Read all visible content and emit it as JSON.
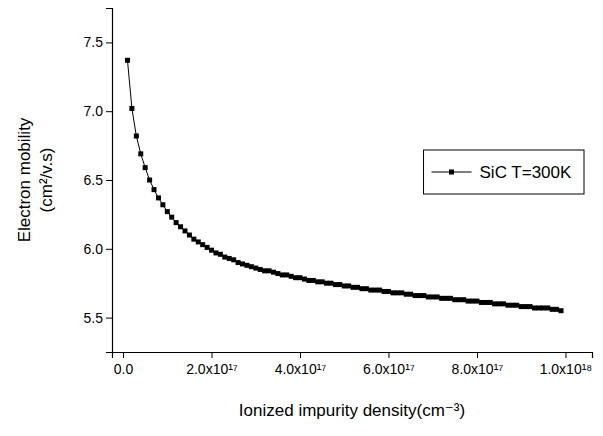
{
  "chart_data": {
    "type": "line",
    "x_label": "Ionized impurity density(cm⁻³)",
    "y_label": [
      "Electron mobility",
      "(cm²/v.s)"
    ],
    "xlim": [
      -2.5e+16,
      1.06e+18
    ],
    "ylim": [
      5.25,
      7.75
    ],
    "xticks": [
      {
        "value": 0,
        "label": "0.0"
      },
      {
        "value": 2e+17,
        "label": "2.0x10¹⁷"
      },
      {
        "value": 4e+17,
        "label": "4.0x10¹⁷"
      },
      {
        "value": 6e+17,
        "label": "6.0x10¹⁷"
      },
      {
        "value": 8e+17,
        "label": "8.0x10¹⁷"
      },
      {
        "value": 1e+18,
        "label": "1.0x10¹⁸"
      }
    ],
    "yticks": [
      5.5,
      {
        "value": 6,
        "label": "6.0"
      },
      6.5,
      {
        "value": 7,
        "label": "7.0"
      },
      7.5
    ],
    "legend": "right",
    "x": [
      1e+16,
      2e+16,
      3e+16,
      4e+16,
      5e+16,
      6e+16,
      7e+16,
      8e+16,
      9e+16,
      1e+17,
      1.1e+17,
      1.2e+17,
      1.3e+17,
      1.4e+17,
      1.5e+17,
      1.6e+17,
      1.7e+17,
      1.8e+17,
      1.9e+17,
      2e+17,
      2.1e+17,
      2.2e+17,
      2.3e+17,
      2.4e+17,
      2.5e+17,
      2.6e+17,
      2.7e+17,
      2.8e+17,
      2.9e+17,
      3e+17,
      3.1e+17,
      3.2e+17,
      3.3e+17,
      3.4e+17,
      3.5e+17,
      3.6e+17,
      3.7e+17,
      3.8e+17,
      3.9e+17,
      4e+17,
      4.1e+17,
      4.2e+17,
      4.3e+17,
      4.4e+17,
      4.5e+17,
      4.6e+17,
      4.7e+17,
      4.8e+17,
      4.9e+17,
      5e+17,
      5.1e+17,
      5.2e+17,
      5.3e+17,
      5.4e+17,
      5.5e+17,
      5.6e+17,
      5.7e+17,
      5.8e+17,
      5.9e+17,
      6e+17,
      6.1e+17,
      6.2e+17,
      6.3e+17,
      6.4e+17,
      6.5e+17,
      6.6e+17,
      6.7e+17,
      6.8e+17,
      6.9e+17,
      7e+17,
      7.1e+17,
      7.2e+17,
      7.3e+17,
      7.4e+17,
      7.5e+17,
      7.6e+17,
      7.7e+17,
      7.8e+17,
      7.9e+17,
      8e+17,
      8.1e+17,
      8.2e+17,
      8.3e+17,
      8.4e+17,
      8.5e+17,
      8.6e+17,
      8.7e+17,
      8.8e+17,
      8.9e+17,
      9e+17,
      9.1e+17,
      9.2e+17,
      9.3e+17,
      9.4e+17,
      9.5e+17,
      9.6e+17,
      9.7e+17,
      9.8e+17,
      9.9e+17
    ],
    "series": [
      {
        "name": "SiC T=300K",
        "color": "#000000",
        "marker": "square",
        "line_style": "solid",
        "values": [
          7.37,
          7.02,
          6.82,
          6.69,
          6.59,
          6.5,
          6.43,
          6.37,
          6.32,
          6.27,
          6.23,
          6.19,
          6.16,
          6.13,
          6.1,
          6.07,
          6.05,
          6.03,
          6.01,
          5.99,
          5.97,
          5.96,
          5.94,
          5.93,
          5.92,
          5.9,
          5.89,
          5.88,
          5.87,
          5.86,
          5.85,
          5.84,
          5.84,
          5.83,
          5.82,
          5.81,
          5.81,
          5.8,
          5.79,
          5.79,
          5.78,
          5.77,
          5.77,
          5.76,
          5.76,
          5.75,
          5.75,
          5.74,
          5.74,
          5.73,
          5.73,
          5.72,
          5.72,
          5.71,
          5.71,
          5.7,
          5.7,
          5.7,
          5.69,
          5.69,
          5.68,
          5.68,
          5.68,
          5.67,
          5.67,
          5.66,
          5.66,
          5.66,
          5.65,
          5.65,
          5.65,
          5.64,
          5.64,
          5.64,
          5.63,
          5.63,
          5.63,
          5.62,
          5.62,
          5.62,
          5.61,
          5.61,
          5.61,
          5.6,
          5.6,
          5.6,
          5.59,
          5.59,
          5.59,
          5.58,
          5.58,
          5.58,
          5.57,
          5.57,
          5.57,
          5.57,
          5.56,
          5.56,
          5.55
        ]
      }
    ]
  }
}
